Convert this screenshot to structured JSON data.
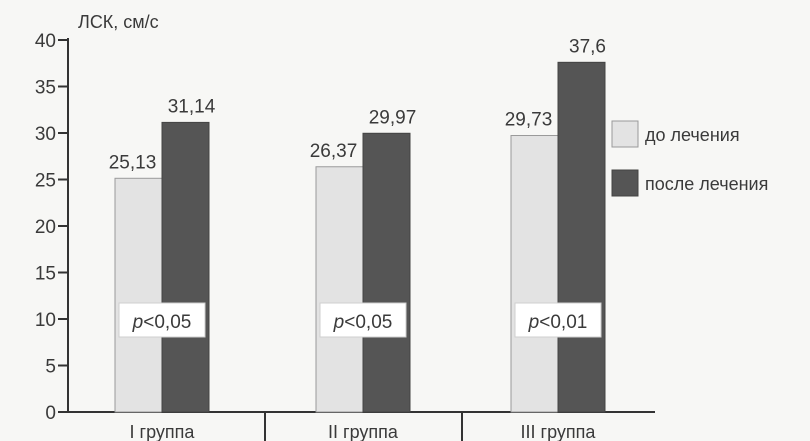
{
  "chart_data": {
    "type": "bar",
    "ylabel": "ЛСК, см/с",
    "xlabel": "",
    "ylim": [
      0,
      40
    ],
    "yticks": [
      0,
      5,
      10,
      15,
      20,
      25,
      30,
      35,
      40
    ],
    "categories": [
      "I группа",
      "II группа",
      "III группа"
    ],
    "series": [
      {
        "name": "до лечения",
        "values": [
          25.13,
          26.37,
          29.73
        ],
        "labels": [
          "25,13",
          "26,37",
          "29,73"
        ],
        "color": "#e3e3e3"
      },
      {
        "name": "после лечения",
        "values": [
          31.14,
          29.97,
          37.6
        ],
        "labels": [
          "31,14",
          "29,97",
          "37,6"
        ],
        "color": "#555555"
      }
    ],
    "annotations": [
      {
        "prefix": "p",
        "text": "<0,05"
      },
      {
        "prefix": "p",
        "text": "<0,05"
      },
      {
        "prefix": "p",
        "text": "<0,01"
      }
    ],
    "legend_position": "right",
    "grid": false
  }
}
